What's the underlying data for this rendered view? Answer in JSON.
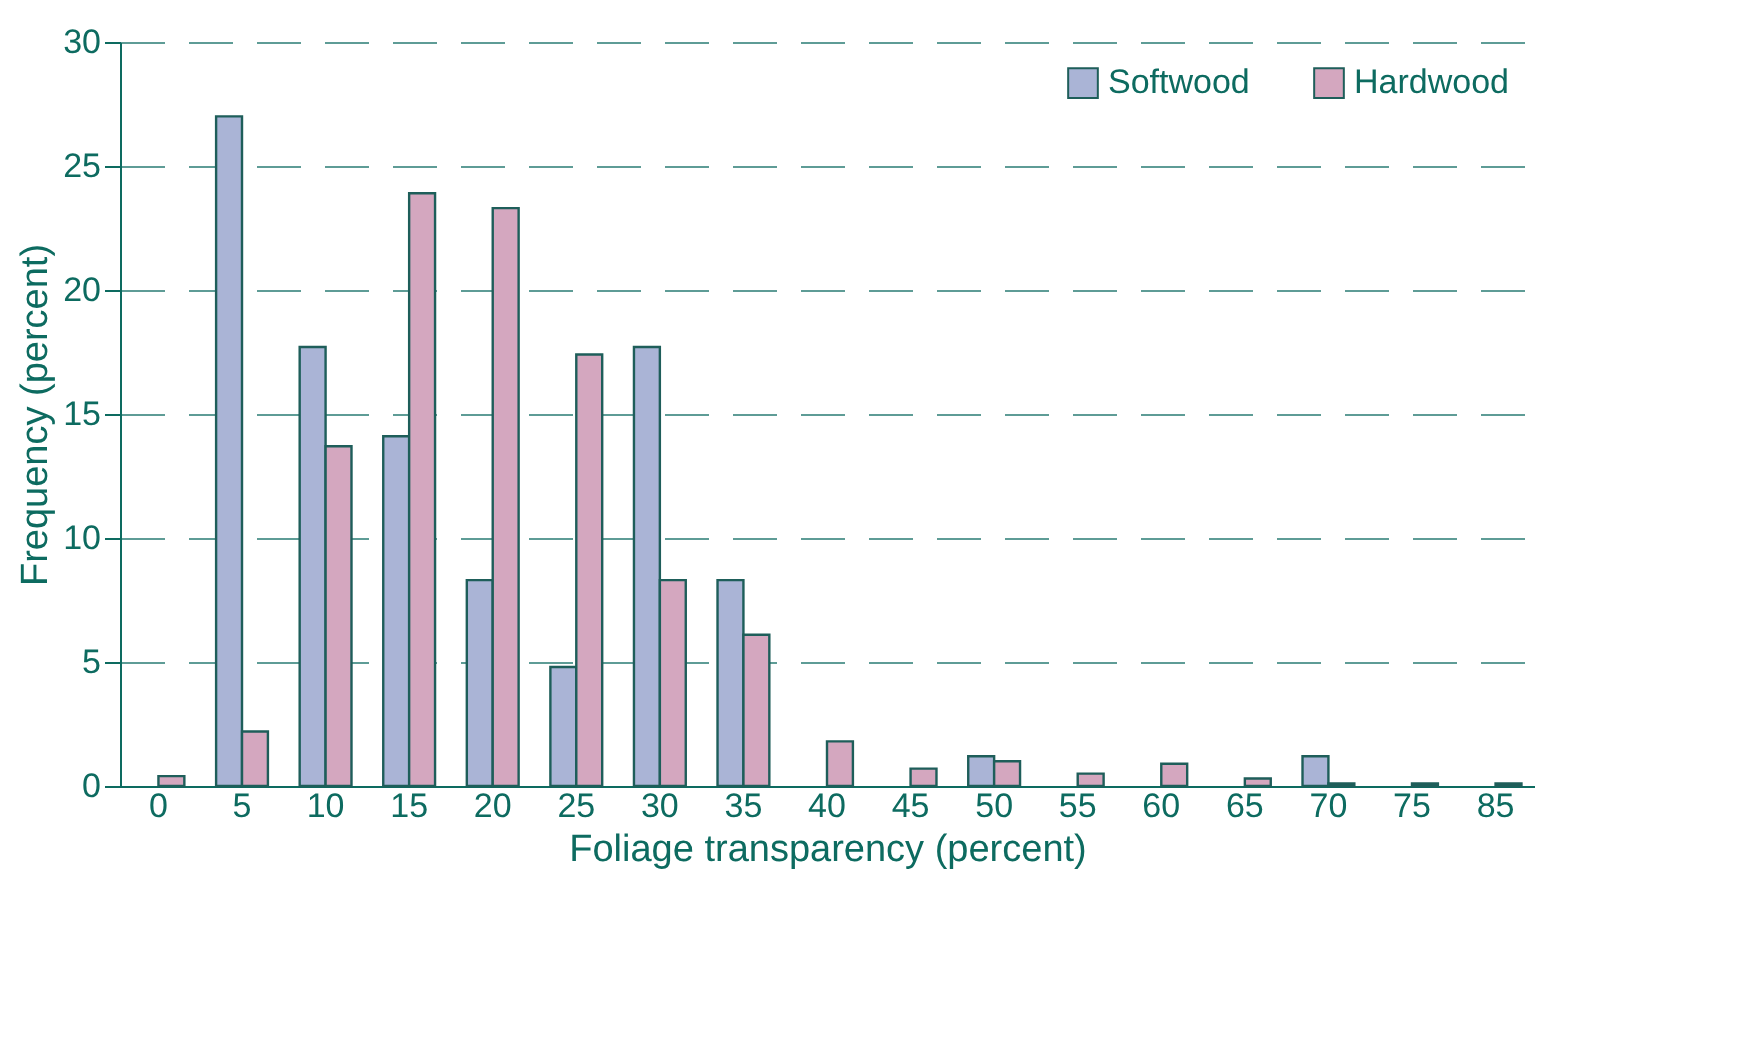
{
  "chart_data": {
    "type": "bar",
    "xlabel": "Foliage transparency (percent)",
    "ylabel": "Frequency (percent)",
    "categories": [
      "0",
      "5",
      "10",
      "15",
      "20",
      "25",
      "30",
      "35",
      "40",
      "45",
      "50",
      "55",
      "60",
      "65",
      "70",
      "75",
      "85"
    ],
    "series": [
      {
        "name": "Softwood",
        "color": "#aab4d6",
        "values": [
          null,
          27.0,
          17.7,
          14.1,
          8.3,
          4.8,
          17.7,
          8.3,
          null,
          null,
          1.2,
          null,
          null,
          null,
          1.2,
          null,
          null
        ]
      },
      {
        "name": "Hardwood",
        "color": "#d4a7bf",
        "values": [
          0.4,
          2.2,
          13.7,
          23.9,
          23.3,
          17.4,
          8.3,
          6.1,
          1.8,
          0.7,
          1.0,
          0.5,
          0.9,
          0.3,
          0.1,
          0.1,
          0.1
        ]
      }
    ],
    "ylim": [
      0,
      30
    ],
    "yticks": [
      0,
      5,
      10,
      15,
      20,
      25,
      30
    ],
    "grid": "y",
    "legend": "top right"
  }
}
